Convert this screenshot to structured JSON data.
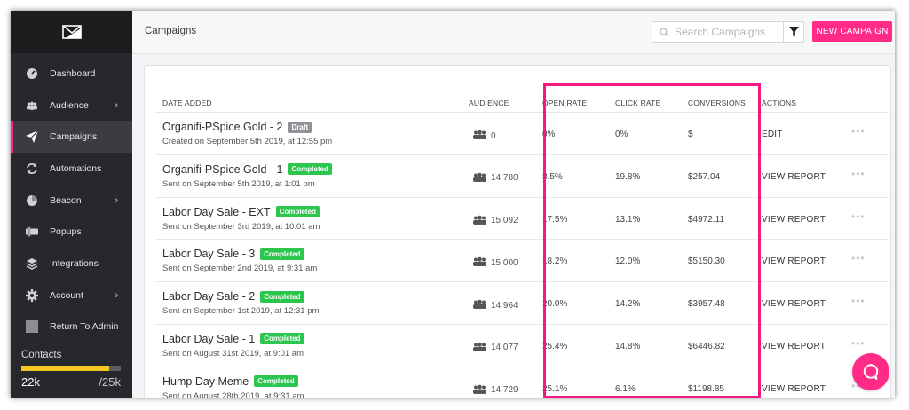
{
  "header": {
    "title": "Campaigns",
    "search_placeholder": "Search Campaigns",
    "new_campaign_label": "NEW CAMPAIGN"
  },
  "sidebar": {
    "items": [
      {
        "label": "Dashboard",
        "icon": "dashboard-icon",
        "chevron": false,
        "active": false
      },
      {
        "label": "Audience",
        "icon": "audience-icon",
        "chevron": true,
        "active": false
      },
      {
        "label": "Campaigns",
        "icon": "paper-plane-icon",
        "chevron": false,
        "active": true
      },
      {
        "label": "Automations",
        "icon": "automations-icon",
        "chevron": false,
        "active": false
      },
      {
        "label": "Beacon",
        "icon": "beacon-icon",
        "chevron": true,
        "active": false
      },
      {
        "label": "Popups",
        "icon": "popups-icon",
        "chevron": false,
        "active": false
      },
      {
        "label": "Integrations",
        "icon": "layers-icon",
        "chevron": false,
        "active": false
      },
      {
        "label": "Account",
        "icon": "gear-icon",
        "chevron": true,
        "active": false
      },
      {
        "label": "Return To Admin",
        "icon": "admin-square-icon",
        "chevron": false,
        "active": false
      }
    ],
    "chevron_glyph": "›",
    "contacts": {
      "label": "Contacts",
      "used": "22k",
      "limit": "/25k",
      "fill_fraction": 0.88
    }
  },
  "table": {
    "headers": {
      "date_added": "DATE ADDED",
      "audience": "AUDIENCE",
      "open_rate": "OPEN RATE",
      "click_rate": "CLICK RATE",
      "conversions": "CONVERSIONS",
      "actions": "ACTIONS"
    },
    "rows": [
      {
        "name": "Organifi-PSpice Gold - 2",
        "badge": "Draft",
        "subtitle": "Created on September 5th 2019, at 12:55 pm",
        "audience": "0",
        "open_rate": "0%",
        "click_rate": "0%",
        "conversions": "$",
        "action": "EDIT"
      },
      {
        "name": "Organifi-PSpice Gold - 1",
        "badge": "Completed",
        "subtitle": "Sent on September 5th 2019, at 1:01 pm",
        "audience": "14,780",
        "open_rate": "8.5%",
        "click_rate": "19.8%",
        "conversions": "$257.04",
        "action": "VIEW REPORT"
      },
      {
        "name": "Labor Day Sale - EXT",
        "badge": "Completed",
        "subtitle": "Sent on September 3rd 2019, at 10:01 am",
        "audience": "15,092",
        "open_rate": "17.5%",
        "click_rate": "13.1%",
        "conversions": "$4972.11",
        "action": "VIEW REPORT"
      },
      {
        "name": "Labor Day Sale - 3",
        "badge": "Completed",
        "subtitle": "Sent on September 2nd 2019, at 9:31 am",
        "audience": "15,000",
        "open_rate": "18.2%",
        "click_rate": "12.0%",
        "conversions": "$5150.30",
        "action": "VIEW REPORT"
      },
      {
        "name": "Labor Day Sale - 2",
        "badge": "Completed",
        "subtitle": "Sent on September 1st 2019, at 12:31 pm",
        "audience": "14,964",
        "open_rate": "20.0%",
        "click_rate": "14.2%",
        "conversions": "$3957.48",
        "action": "VIEW REPORT"
      },
      {
        "name": "Labor Day Sale - 1",
        "badge": "Completed",
        "subtitle": "Sent on August 31st 2019, at 9:01 am",
        "audience": "14,077",
        "open_rate": "25.4%",
        "click_rate": "14.8%",
        "conversions": "$6446.82",
        "action": "VIEW REPORT"
      },
      {
        "name": "Hump Day Meme",
        "badge": "Completed",
        "subtitle": "Sent on August 28th 2019, at 9:31 am",
        "audience": "14,729",
        "open_rate": "25.1%",
        "click_rate": "6.1%",
        "conversions": "$1198.85",
        "action": "VIEW REPORT"
      }
    ],
    "more_glyph": "•••"
  },
  "colors": {
    "accent": "#ff2b87",
    "completed_badge": "#2cc64f",
    "draft_badge": "#8f9296",
    "contacts_bar": "#f3c623",
    "highlight_border": "#f5197f"
  }
}
